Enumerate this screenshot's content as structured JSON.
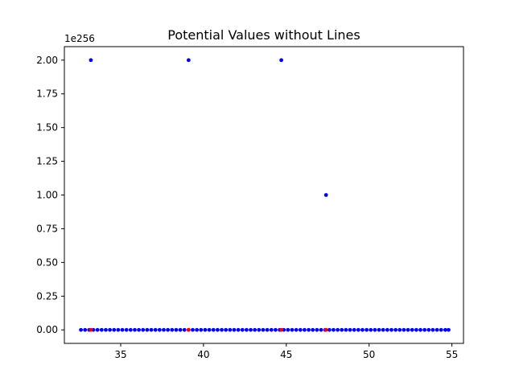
{
  "chart_data": {
    "type": "scatter",
    "title": "Potential Values without Lines",
    "xlabel": "",
    "ylabel": "",
    "y_offset_label": "1e256",
    "xlim": [
      31.6,
      55.7
    ],
    "ylim": [
      -0.1,
      2.1
    ],
    "x_ticks": [
      35,
      40,
      45,
      50,
      55
    ],
    "x_tick_labels": [
      "35",
      "40",
      "45",
      "50",
      "55"
    ],
    "y_ticks": [
      0,
      0.25,
      0.5,
      0.75,
      1.0,
      1.25,
      1.5,
      1.75,
      2.0
    ],
    "y_tick_labels": [
      "0.00",
      "0.25",
      "0.50",
      "0.75",
      "1.00",
      "1.25",
      "1.50",
      "1.75",
      "2.00"
    ],
    "grid": false,
    "series": [
      {
        "color": "#0000ff",
        "baseline": {
          "x_start": 32.6,
          "x_end": 54.8,
          "x_step": 0.25,
          "y": 0
        },
        "spikes": [
          {
            "x": 33.2,
            "y": 2.0
          },
          {
            "x": 39.1,
            "y": 2.0
          },
          {
            "x": 44.7,
            "y": 2.0
          },
          {
            "x": 47.4,
            "y": 1.0
          }
        ]
      },
      {
        "color": "#ff0000",
        "points": [
          {
            "x": 33.2,
            "y": 0
          },
          {
            "x": 39.1,
            "y": 0
          },
          {
            "x": 44.7,
            "y": 0
          },
          {
            "x": 47.4,
            "y": 0
          }
        ]
      }
    ]
  }
}
